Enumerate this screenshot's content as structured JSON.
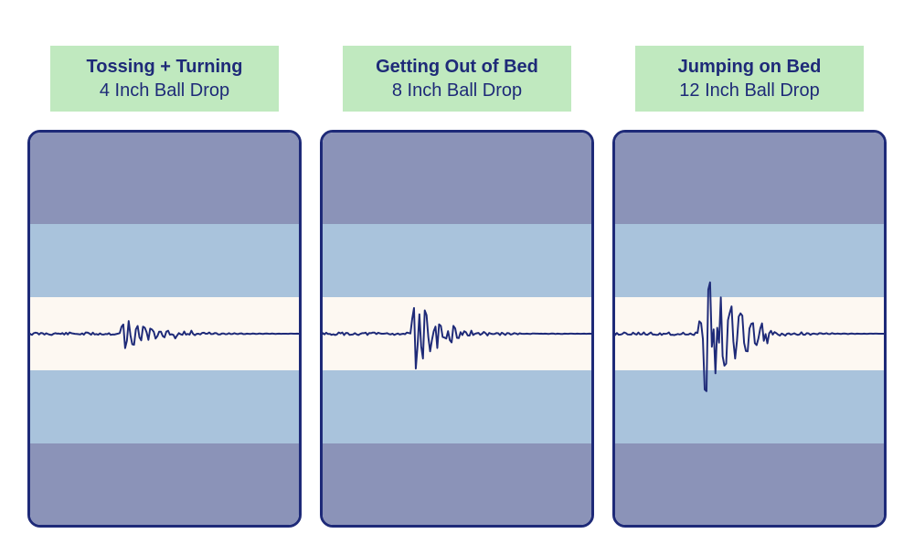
{
  "colors": {
    "label_bg": "#c0e9bf",
    "text": "#1e2a78",
    "border": "#1e2a78",
    "band_dark": "#8b93b8",
    "band_mid": "#a9c3dc",
    "band_light": "#fdf8f2",
    "wave_stroke": "#1e2a78"
  },
  "font": {
    "title_size": 20,
    "title_weight": 700,
    "sub_size": 20,
    "sub_weight": 400
  },
  "wave": {
    "stroke_width": 2,
    "baseline_noise": 1.5,
    "tail_noise": 3,
    "viewbox_w": 300,
    "viewbox_h": 200,
    "noise_seed": 11
  },
  "panels": [
    {
      "title": "Tossing + Turning",
      "subtitle": "4 Inch Ball Drop",
      "amplitude": 22,
      "burst_start": 100,
      "burst_width": 60
    },
    {
      "title": "Getting Out of Bed",
      "subtitle": "8 Inch Ball Drop",
      "amplitude": 55,
      "burst_start": 98,
      "burst_width": 55
    },
    {
      "title": "Jumping on Bed",
      "subtitle": "12 Inch Ball Drop",
      "amplitude": 90,
      "burst_start": 92,
      "burst_width": 80
    }
  ]
}
